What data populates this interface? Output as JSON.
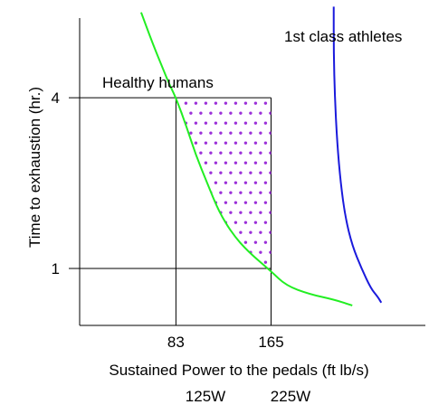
{
  "chart_data": {
    "type": "line",
    "title": "",
    "xlabel": "Sustained Power to the pedals (ft lb/s)",
    "ylabel": "Time to exhaustion (hr.)",
    "xlim": [
      0,
      298
    ],
    "ylim": [
      0,
      5.4
    ],
    "x_ticks": [
      {
        "value": 83,
        "label": "83"
      },
      {
        "value": 165,
        "label": "165"
      }
    ],
    "y_ticks": [
      {
        "value": 1,
        "label": "1"
      },
      {
        "value": 4,
        "label": "4"
      }
    ],
    "secondary_x_labels": [
      {
        "value": 83,
        "label": "125W"
      },
      {
        "value": 165,
        "label": "225W"
      }
    ],
    "series": [
      {
        "name": "Healthy humans",
        "color": "#22ee22",
        "points": [
          [
            53,
            5.5
          ],
          [
            63,
            4.95
          ],
          [
            72,
            4.5
          ],
          [
            77,
            4.25
          ],
          [
            83,
            4.0
          ],
          [
            92,
            3.5
          ],
          [
            100,
            3.0
          ],
          [
            110,
            2.5
          ],
          [
            120,
            2.0
          ],
          [
            132,
            1.6
          ],
          [
            145,
            1.3
          ],
          [
            165,
            0.95
          ],
          [
            178,
            0.7
          ],
          [
            198,
            0.55
          ],
          [
            220,
            0.45
          ],
          [
            235,
            0.35
          ]
        ]
      },
      {
        "name": "1st class athletes",
        "color": "#1a1adc",
        "points": [
          [
            219,
            5.6
          ],
          [
            219,
            4.8
          ],
          [
            220,
            4.0
          ],
          [
            222,
            3.2
          ],
          [
            225,
            2.5
          ],
          [
            229,
            1.9
          ],
          [
            235,
            1.4
          ],
          [
            243,
            1.0
          ],
          [
            251,
            0.65
          ],
          [
            257,
            0.5
          ],
          [
            260,
            0.4
          ]
        ]
      }
    ],
    "reference_lines": [
      {
        "orientation": "horizontal",
        "value": 4,
        "from": 0,
        "to": 165
      },
      {
        "orientation": "horizontal",
        "value": 1,
        "from": 0,
        "to": 165
      },
      {
        "orientation": "vertical",
        "value": 83,
        "from": 0,
        "to": 4
      },
      {
        "orientation": "vertical",
        "value": 165,
        "from": 0,
        "to": 4
      }
    ],
    "shaded_region": {
      "description": "dotted area between curve and x=165 for 1<=y<=4",
      "color": "#9b30d9",
      "x_range": [
        83,
        165
      ],
      "y_range": [
        1,
        4
      ]
    },
    "grid": false,
    "axis_color": "#000000"
  }
}
